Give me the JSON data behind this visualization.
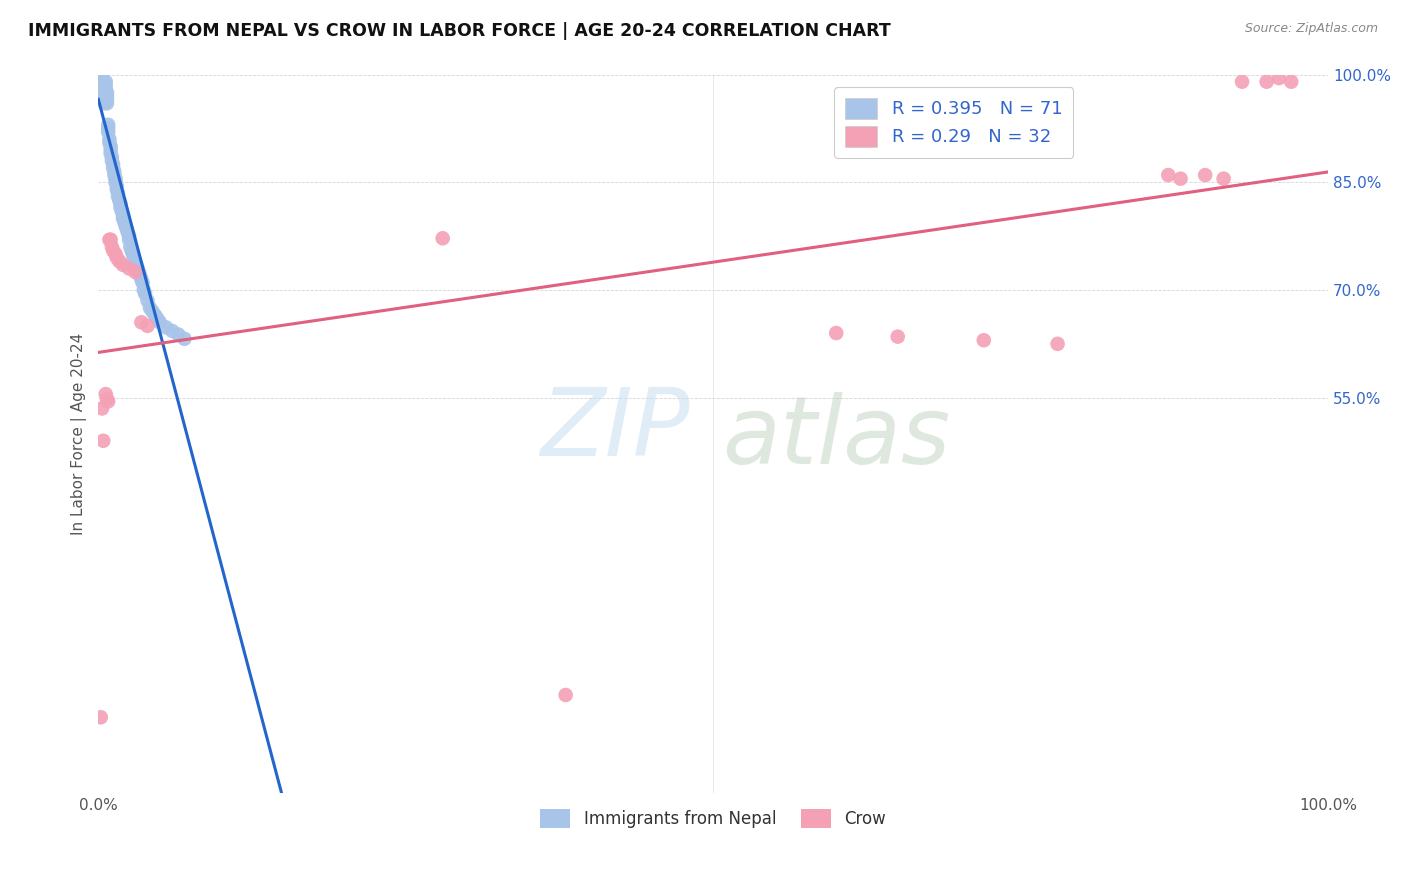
{
  "title": "IMMIGRANTS FROM NEPAL VS CROW IN LABOR FORCE | AGE 20-24 CORRELATION CHART",
  "source": "Source: ZipAtlas.com",
  "ylabel": "In Labor Force | Age 20-24",
  "xlim": [
    0,
    1.0
  ],
  "ylim": [
    0,
    1.0
  ],
  "nepal_color": "#a8c4e8",
  "crow_color": "#f4a0b5",
  "nepal_line_color": "#2266cc",
  "crow_line_color": "#e06080",
  "nepal_R": 0.395,
  "nepal_N": 71,
  "crow_R": 0.29,
  "crow_N": 32,
  "legend_text_color": "#3366cc",
  "nepal_scatter_x": [
    0.001,
    0.002,
    0.003,
    0.003,
    0.004,
    0.004,
    0.005,
    0.005,
    0.005,
    0.006,
    0.006,
    0.006,
    0.007,
    0.007,
    0.007,
    0.007,
    0.008,
    0.008,
    0.008,
    0.009,
    0.009,
    0.01,
    0.01,
    0.01,
    0.011,
    0.011,
    0.012,
    0.012,
    0.013,
    0.013,
    0.014,
    0.014,
    0.015,
    0.015,
    0.016,
    0.016,
    0.017,
    0.018,
    0.018,
    0.019,
    0.02,
    0.02,
    0.021,
    0.022,
    0.023,
    0.024,
    0.025,
    0.025,
    0.026,
    0.027,
    0.028,
    0.029,
    0.03,
    0.031,
    0.032,
    0.033,
    0.034,
    0.035,
    0.036,
    0.037,
    0.038,
    0.04,
    0.042,
    0.044,
    0.046,
    0.048,
    0.05,
    0.055,
    0.06,
    0.065,
    0.07
  ],
  "nepal_scatter_y": [
    0.99,
    0.985,
    0.995,
    0.99,
    0.98,
    0.975,
    0.97,
    0.965,
    0.96,
    0.99,
    0.985,
    0.98,
    0.975,
    0.97,
    0.965,
    0.96,
    0.93,
    0.925,
    0.92,
    0.91,
    0.905,
    0.9,
    0.895,
    0.89,
    0.885,
    0.88,
    0.875,
    0.87,
    0.865,
    0.86,
    0.855,
    0.85,
    0.845,
    0.84,
    0.835,
    0.83,
    0.825,
    0.82,
    0.815,
    0.81,
    0.805,
    0.8,
    0.795,
    0.79,
    0.785,
    0.78,
    0.775,
    0.77,
    0.76,
    0.755,
    0.75,
    0.745,
    0.74,
    0.735,
    0.73,
    0.725,
    0.72,
    0.715,
    0.71,
    0.7,
    0.695,
    0.685,
    0.675,
    0.67,
    0.665,
    0.66,
    0.655,
    0.648,
    0.643,
    0.638,
    0.632
  ],
  "crow_scatter_x": [
    0.002,
    0.003,
    0.004,
    0.006,
    0.007,
    0.008,
    0.009,
    0.01,
    0.011,
    0.012,
    0.014,
    0.015,
    0.017,
    0.02,
    0.025,
    0.03,
    0.035,
    0.04,
    0.28,
    0.38,
    0.6,
    0.65,
    0.72,
    0.78,
    0.87,
    0.88,
    0.9,
    0.915,
    0.93,
    0.95,
    0.96,
    0.97
  ],
  "crow_scatter_y": [
    0.105,
    0.535,
    0.49,
    0.555,
    0.548,
    0.545,
    0.77,
    0.77,
    0.76,
    0.755,
    0.75,
    0.745,
    0.74,
    0.735,
    0.73,
    0.725,
    0.655,
    0.65,
    0.772,
    0.136,
    0.64,
    0.635,
    0.63,
    0.625,
    0.86,
    0.855,
    0.86,
    0.855,
    0.99,
    0.99,
    0.995,
    0.99
  ]
}
